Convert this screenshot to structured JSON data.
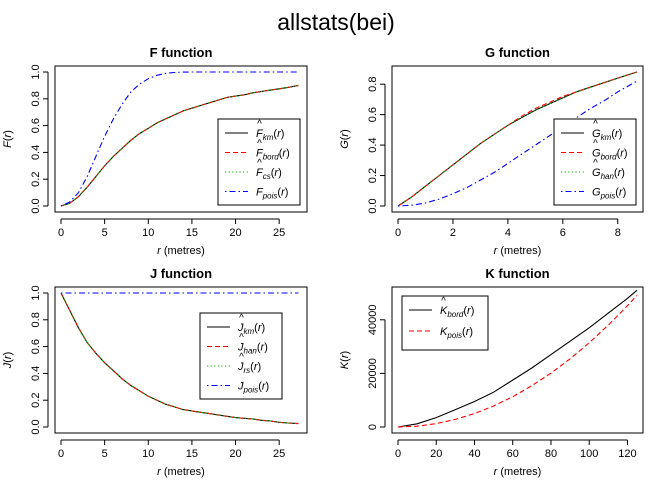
{
  "title": "allstats(bei)",
  "chart_data": [
    {
      "type": "line",
      "title": "F function",
      "xlabel_var": "r",
      "xlabel_unit": "(metres)",
      "ylabel_fn": "F",
      "xlim": [
        0,
        27.5
      ],
      "ylim": [
        0,
        1.0
      ],
      "xticks": [
        0,
        5,
        10,
        15,
        20,
        25
      ],
      "yticks": [
        0.0,
        0.2,
        0.4,
        0.6,
        0.8,
        1.0
      ],
      "ytick_labels": [
        "0.0",
        "0.2",
        "0.4",
        "0.6",
        "0.8",
        "1.0"
      ],
      "grid": false,
      "legend_position": "bottom-right",
      "series": [
        {
          "name": "F̂km(r)",
          "legend": {
            "base": "F",
            "hat": true,
            "sub": "km"
          },
          "color": "#000000",
          "dash": "solid",
          "x": [
            0,
            1,
            2,
            3,
            4,
            5,
            6,
            7,
            8,
            9,
            10,
            11,
            12,
            13,
            14,
            15,
            16,
            17,
            18,
            19,
            20,
            21,
            22,
            23,
            24,
            25,
            26,
            27.2
          ],
          "y": [
            0,
            0.02,
            0.07,
            0.14,
            0.22,
            0.3,
            0.37,
            0.43,
            0.49,
            0.54,
            0.58,
            0.62,
            0.65,
            0.68,
            0.71,
            0.73,
            0.75,
            0.77,
            0.79,
            0.81,
            0.82,
            0.83,
            0.845,
            0.855,
            0.865,
            0.875,
            0.885,
            0.9
          ]
        },
        {
          "name": "F̂bord(r)",
          "legend": {
            "base": "F",
            "hat": true,
            "sub": "bord"
          },
          "color": "#ff0000",
          "dash": "dashed",
          "x": [
            0,
            1,
            2,
            3,
            4,
            5,
            6,
            7,
            8,
            9,
            10,
            11,
            12,
            13,
            14,
            15,
            16,
            17,
            18,
            19,
            20,
            21,
            22,
            23,
            24,
            25,
            26,
            27.2
          ],
          "y": [
            0,
            0.02,
            0.07,
            0.14,
            0.22,
            0.3,
            0.37,
            0.43,
            0.49,
            0.54,
            0.58,
            0.62,
            0.65,
            0.68,
            0.71,
            0.73,
            0.75,
            0.77,
            0.79,
            0.81,
            0.82,
            0.83,
            0.845,
            0.855,
            0.865,
            0.875,
            0.885,
            0.9
          ]
        },
        {
          "name": "F̂cs(r)",
          "legend": {
            "base": "F",
            "hat": true,
            "sub": "cs"
          },
          "color": "#00b000",
          "dash": "dotted",
          "x": [
            0,
            1,
            2,
            3,
            4,
            5,
            6,
            7,
            8,
            9,
            10,
            11,
            12,
            13,
            14,
            15,
            16,
            17,
            18,
            19,
            20,
            21,
            22,
            23,
            24,
            25,
            26,
            27.2
          ],
          "y": [
            0,
            0.02,
            0.07,
            0.14,
            0.22,
            0.3,
            0.37,
            0.43,
            0.49,
            0.54,
            0.58,
            0.62,
            0.65,
            0.68,
            0.71,
            0.73,
            0.75,
            0.77,
            0.79,
            0.81,
            0.82,
            0.83,
            0.845,
            0.855,
            0.865,
            0.875,
            0.885,
            0.9
          ]
        },
        {
          "name": "Fpois(r)",
          "legend": {
            "base": "F",
            "hat": false,
            "sub": "pois"
          },
          "color": "#0000ff",
          "dash": "dotdash",
          "x": [
            0,
            1,
            2,
            3,
            4,
            5,
            6,
            7,
            8,
            9,
            10,
            11,
            12,
            13,
            14,
            15,
            17,
            20,
            27.2
          ],
          "y": [
            0,
            0.03,
            0.1,
            0.22,
            0.37,
            0.52,
            0.65,
            0.76,
            0.85,
            0.91,
            0.95,
            0.975,
            0.99,
            0.996,
            0.999,
            1.0,
            1.0,
            1.0,
            1.0
          ]
        }
      ]
    },
    {
      "type": "line",
      "title": "G function",
      "xlabel_var": "r",
      "xlabel_unit": "(metres)",
      "ylabel_fn": "G",
      "xlim": [
        0,
        8.7
      ],
      "ylim": [
        0,
        0.88
      ],
      "xticks": [
        0,
        2,
        4,
        6,
        8
      ],
      "yticks": [
        0.0,
        0.2,
        0.4,
        0.6,
        0.8
      ],
      "ytick_labels": [
        "0.0",
        "0.2",
        "0.4",
        "0.6",
        "0.8"
      ],
      "grid": false,
      "legend_position": "bottom-right",
      "series": [
        {
          "name": "Ĝkm(r)",
          "legend": {
            "base": "G",
            "hat": true,
            "sub": "km"
          },
          "color": "#000000",
          "dash": "solid",
          "x": [
            0,
            0.5,
            1,
            1.5,
            2,
            2.5,
            3,
            3.5,
            4,
            4.5,
            5,
            5.5,
            6,
            6.5,
            7,
            7.5,
            8,
            8.7
          ],
          "y": [
            0,
            0.06,
            0.13,
            0.2,
            0.27,
            0.34,
            0.41,
            0.47,
            0.53,
            0.58,
            0.63,
            0.67,
            0.71,
            0.75,
            0.78,
            0.81,
            0.84,
            0.88
          ]
        },
        {
          "name": "Ĝbord(r)",
          "legend": {
            "base": "G",
            "hat": true,
            "sub": "bord"
          },
          "color": "#ff0000",
          "dash": "dashed",
          "x": [
            0,
            0.5,
            1,
            1.5,
            2,
            2.5,
            3,
            3.5,
            4,
            4.5,
            5,
            5.5,
            6,
            6.5,
            7,
            7.5,
            8,
            8.7
          ],
          "y": [
            0,
            0.06,
            0.13,
            0.2,
            0.27,
            0.34,
            0.41,
            0.47,
            0.53,
            0.59,
            0.64,
            0.68,
            0.72,
            0.75,
            0.78,
            0.81,
            0.84,
            0.88
          ]
        },
        {
          "name": "Ĝhan(r)",
          "legend": {
            "base": "G",
            "hat": true,
            "sub": "han"
          },
          "color": "#00b000",
          "dash": "dotted",
          "x": [
            0,
            0.5,
            1,
            1.5,
            2,
            2.5,
            3,
            3.5,
            4,
            4.5,
            5,
            5.5,
            6,
            6.5,
            7,
            7.5,
            8,
            8.7
          ],
          "y": [
            0,
            0.06,
            0.13,
            0.2,
            0.27,
            0.34,
            0.41,
            0.47,
            0.53,
            0.58,
            0.63,
            0.67,
            0.71,
            0.75,
            0.78,
            0.81,
            0.84,
            0.88
          ]
        },
        {
          "name": "Gpois(r)",
          "legend": {
            "base": "G",
            "hat": false,
            "sub": "pois"
          },
          "color": "#0000ff",
          "dash": "dotdash",
          "x": [
            0,
            0.5,
            1,
            1.5,
            2,
            2.5,
            3,
            3.5,
            4,
            4.5,
            5,
            5.5,
            6,
            6.5,
            7,
            7.5,
            8,
            8.7
          ],
          "y": [
            0,
            0.005,
            0.02,
            0.045,
            0.08,
            0.12,
            0.17,
            0.22,
            0.28,
            0.34,
            0.4,
            0.46,
            0.52,
            0.58,
            0.64,
            0.69,
            0.75,
            0.82
          ]
        }
      ]
    },
    {
      "type": "line",
      "title": "J function",
      "xlabel_var": "r",
      "xlabel_unit": "(metres)",
      "ylabel_fn": "J",
      "xlim": [
        0,
        27.5
      ],
      "ylim": [
        0,
        1.0
      ],
      "xticks": [
        0,
        5,
        10,
        15,
        20,
        25
      ],
      "yticks": [
        0.0,
        0.2,
        0.4,
        0.6,
        0.8,
        1.0
      ],
      "ytick_labels": [
        "0.0",
        "0.2",
        "0.4",
        "0.6",
        "0.8",
        "1.0"
      ],
      "grid": false,
      "legend_position": "top-right",
      "series": [
        {
          "name": "Ĵkm(r)",
          "legend": {
            "base": "J",
            "hat": true,
            "sub": "km"
          },
          "color": "#000000",
          "dash": "solid",
          "x": [
            0,
            1,
            2,
            3,
            4,
            5,
            6,
            7,
            8,
            9,
            10,
            11,
            12,
            13,
            14,
            15,
            16,
            17,
            18,
            19,
            20,
            21,
            22,
            23,
            24,
            25,
            26,
            27.2
          ],
          "y": [
            1.0,
            0.87,
            0.74,
            0.63,
            0.55,
            0.48,
            0.42,
            0.36,
            0.31,
            0.27,
            0.23,
            0.2,
            0.17,
            0.15,
            0.13,
            0.12,
            0.11,
            0.1,
            0.09,
            0.08,
            0.07,
            0.065,
            0.06,
            0.05,
            0.045,
            0.035,
            0.03,
            0.025
          ]
        },
        {
          "name": "Ĵhan(r)",
          "legend": {
            "base": "J",
            "hat": true,
            "sub": "han"
          },
          "color": "#ff0000",
          "dash": "dashed",
          "x": [
            0,
            1,
            2,
            3,
            4,
            5,
            6,
            7,
            8,
            9,
            10,
            11,
            12,
            13,
            14,
            15,
            16,
            17,
            18,
            19,
            20,
            21,
            22,
            23,
            24,
            25,
            26,
            27.2
          ],
          "y": [
            1.0,
            0.87,
            0.74,
            0.63,
            0.55,
            0.48,
            0.42,
            0.36,
            0.31,
            0.27,
            0.23,
            0.2,
            0.17,
            0.15,
            0.13,
            0.12,
            0.11,
            0.1,
            0.09,
            0.08,
            0.07,
            0.065,
            0.06,
            0.05,
            0.045,
            0.035,
            0.03,
            0.025
          ]
        },
        {
          "name": "Ĵrs(r)",
          "legend": {
            "base": "J",
            "hat": true,
            "sub": "rs"
          },
          "color": "#00b000",
          "dash": "dotted",
          "x": [
            0,
            1,
            2,
            3,
            4,
            5,
            6,
            7,
            8,
            9,
            10,
            11,
            12,
            13,
            14,
            15,
            16,
            17,
            18,
            19,
            20,
            21,
            22,
            23,
            24,
            25,
            26,
            27.2
          ],
          "y": [
            1.0,
            0.87,
            0.74,
            0.63,
            0.55,
            0.48,
            0.42,
            0.36,
            0.31,
            0.27,
            0.23,
            0.2,
            0.17,
            0.15,
            0.13,
            0.12,
            0.11,
            0.1,
            0.09,
            0.08,
            0.07,
            0.065,
            0.06,
            0.05,
            0.045,
            0.035,
            0.03,
            0.025
          ]
        },
        {
          "name": "Jpois(r)",
          "legend": {
            "base": "J",
            "hat": false,
            "sub": "pois"
          },
          "color": "#0000ff",
          "dash": "dotdash",
          "x": [
            0,
            27.2
          ],
          "y": [
            1.0,
            1.0
          ]
        }
      ]
    },
    {
      "type": "line",
      "title": "K function",
      "xlabel_var": "r",
      "xlabel_unit": "(metres)",
      "ylabel_fn": "K",
      "xlim": [
        0,
        125
      ],
      "ylim": [
        0,
        50000
      ],
      "xticks": [
        0,
        20,
        40,
        60,
        80,
        100,
        120
      ],
      "yticks": [
        0,
        20000,
        40000
      ],
      "ytick_labels": [
        "0",
        "20000",
        "40000"
      ],
      "grid": false,
      "legend_position": "top-left",
      "series": [
        {
          "name": "K̂bord(r)",
          "legend": {
            "base": "K",
            "hat": true,
            "sub": "bord"
          },
          "color": "#000000",
          "dash": "solid",
          "x": [
            0,
            10,
            20,
            30,
            40,
            50,
            60,
            70,
            80,
            90,
            100,
            110,
            120,
            125
          ],
          "y": [
            0,
            1200,
            3500,
            6500,
            9500,
            13000,
            17500,
            22000,
            27000,
            32000,
            37000,
            42500,
            48000,
            51000
          ]
        },
        {
          "name": "Kpois(r)",
          "legend": {
            "base": "K",
            "hat": false,
            "sub": "pois"
          },
          "color": "#ff0000",
          "dash": "dashed",
          "x": [
            0,
            10,
            20,
            30,
            40,
            50,
            60,
            70,
            80,
            90,
            100,
            110,
            120,
            125
          ],
          "y": [
            0,
            314,
            1257,
            2827,
            5027,
            7854,
            11310,
            15394,
            20106,
            25447,
            31416,
            38013,
            45239,
            49087
          ]
        }
      ]
    }
  ]
}
